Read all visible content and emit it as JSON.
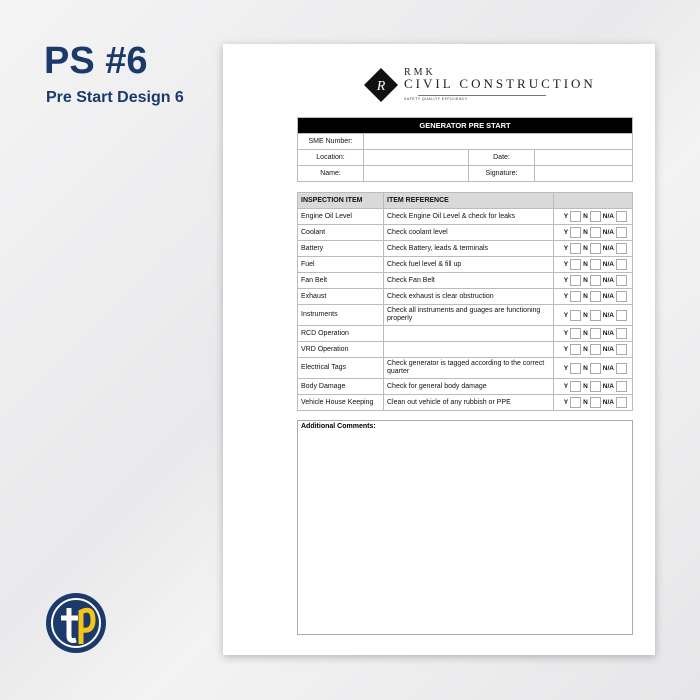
{
  "promo": {
    "title": "PS #6",
    "subtitle": "Pre Start Design 6"
  },
  "company": {
    "line1": "RMK",
    "line2": "CIVIL CONSTRUCTION",
    "tagline": "SAFETY QUALITY EFFICIENCY",
    "logo_letter": "R"
  },
  "form": {
    "title": "GENERATOR PRE START",
    "sme_label": "SME Number:",
    "location_label": "Location:",
    "date_label": "Date:",
    "name_label": "Name:",
    "signature_label": "Signature:"
  },
  "inspection": {
    "headers": [
      "INSPECTION ITEM",
      "ITEM REFERENCE",
      ""
    ],
    "options": [
      "Y",
      "N",
      "N/A"
    ],
    "rows": [
      {
        "item": "Engine Oil Level",
        "ref": "Check Engine Oil Level & check for leaks"
      },
      {
        "item": "Coolant",
        "ref": "Check coolant level"
      },
      {
        "item": "Battery",
        "ref": "Check Battery, leads & terminals"
      },
      {
        "item": "Fuel",
        "ref": "Check fuel level & fill up"
      },
      {
        "item": "Fan Belt",
        "ref": "Check Fan Belt"
      },
      {
        "item": "Exhaust",
        "ref": "Check exhaust is clear obstruction"
      },
      {
        "item": "Instruments",
        "ref": "Check all instruments and guages are functioning properly"
      },
      {
        "item": "RCD Operation",
        "ref": ""
      },
      {
        "item": "VRD Operation",
        "ref": ""
      },
      {
        "item": "Electrical Tags",
        "ref": "Check generator is tagged according to the correct quarter"
      },
      {
        "item": "Body Damage",
        "ref": "Check for general body damage"
      },
      {
        "item": "Vehicle House Keeping",
        "ref": "Clean out vehicle of any rubbish or PPE"
      }
    ]
  },
  "comments_label": "Additional Comments:",
  "colors": {
    "brand_navy": "#1b3a6b",
    "brand_yellow": "#f5c518"
  }
}
